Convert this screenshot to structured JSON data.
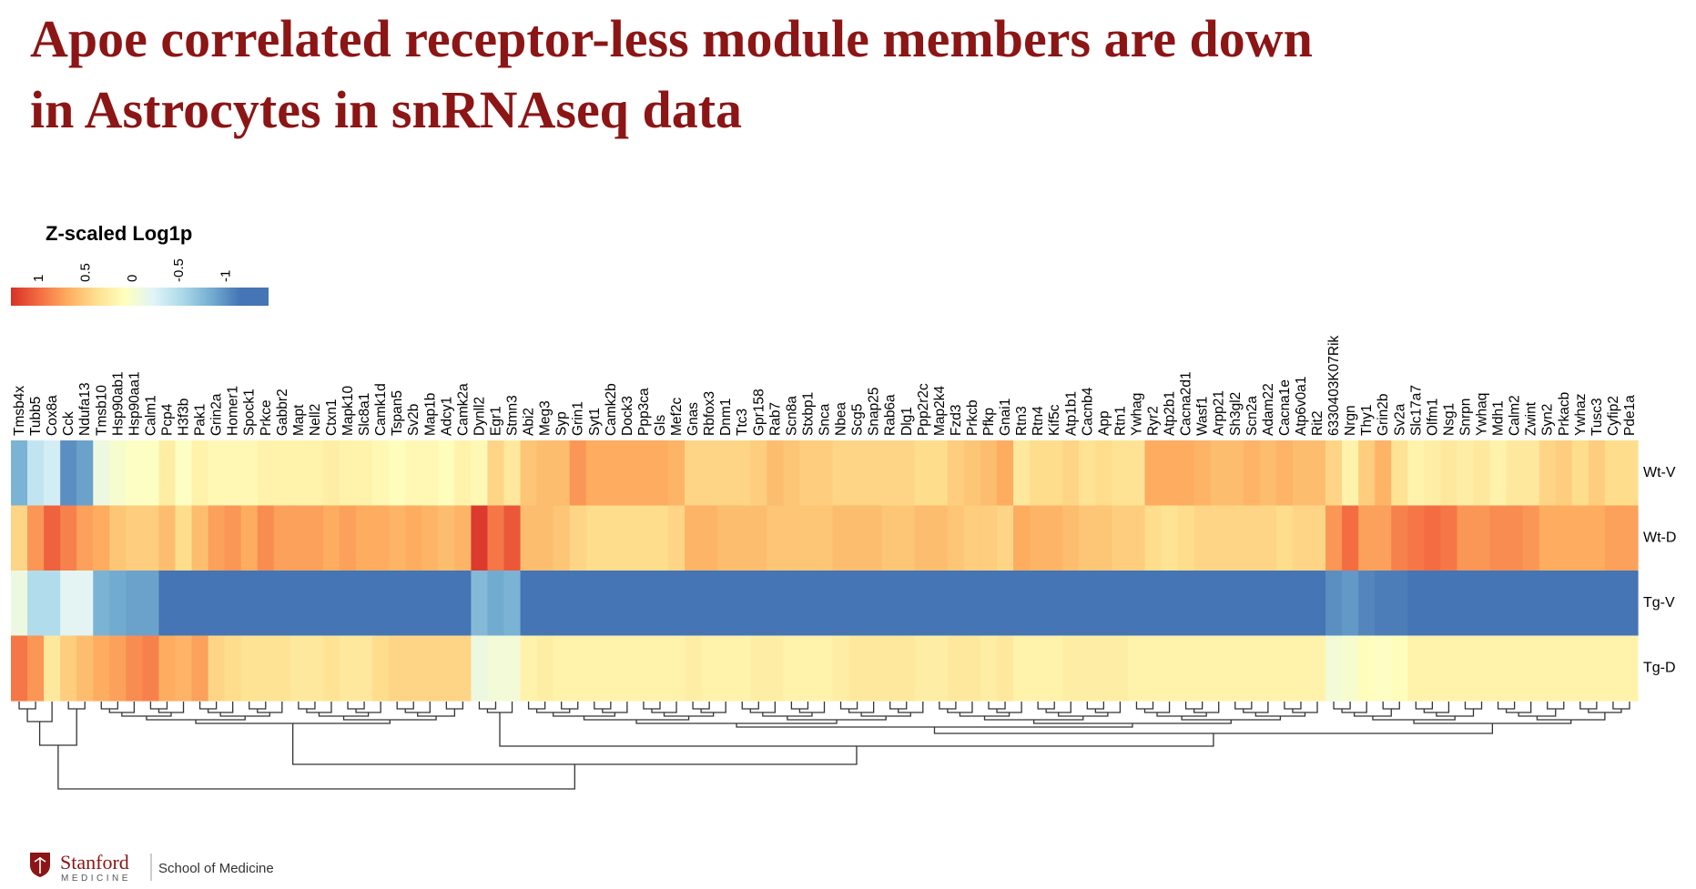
{
  "title_lines": [
    "Apoe correlated receptor-less module members are down",
    "in Astrocytes in snRNAseq data"
  ],
  "chart_data": {
    "type": "heatmap",
    "legend_title": "Z-scaled Log1p",
    "zlim": [
      1.3,
      -1.45
    ],
    "zticks": [
      1,
      0.5,
      0,
      -0.5,
      -1
    ],
    "colors": [
      "#d73027",
      "#f46d43",
      "#fdae61",
      "#fee090",
      "#ffffbf",
      "#e0f3f8",
      "#abd9e9",
      "#74add1",
      "#4575b4",
      "#4575b4"
    ],
    "rows": [
      "Wt-V",
      "Wt-D",
      "Tg-V",
      "Tg-D"
    ],
    "columns": [
      "Tmsb4x",
      "Tubb5",
      "Cox8a",
      "Cck",
      "Ndufa13",
      "Tmsb10",
      "Hsp90ab1",
      "Hsp90aa1",
      "Calm1",
      "Pcp4",
      "H3f3b",
      "Pak1",
      "Grin2a",
      "Homer1",
      "Spock1",
      "Prkce",
      "Gabbr2",
      "Mapt",
      "Nell2",
      "Ctxn1",
      "Mapk10",
      "Slc8a1",
      "Camk1d",
      "Tspan5",
      "Sv2b",
      "Map1b",
      "Adcy1",
      "Camk2a",
      "Dynll2",
      "Egr1",
      "Stmn3",
      "Abi2",
      "Meg3",
      "Syp",
      "Grin1",
      "Syt1",
      "Camk2b",
      "Dock3",
      "Ppp3ca",
      "Gls",
      "Mef2c",
      "Gnas",
      "Rbfox3",
      "Dnm1",
      "Ttc3",
      "Gpr158",
      "Rab7",
      "Scn8a",
      "Stxbp1",
      "Snca",
      "Nbea",
      "Scg5",
      "Snap25",
      "Rab6a",
      "Dlg1",
      "Ppp2r2c",
      "Map2k4",
      "Fzd3",
      "Prkcb",
      "Pfkp",
      "Gnai1",
      "Rtn3",
      "Rtn4",
      "Kif5c",
      "Atp1b1",
      "Cacnb4",
      "App",
      "Rtn1",
      "Ywhag",
      "Ryr2",
      "Atp2b1",
      "Cacna2d1",
      "Wasf1",
      "Arpp21",
      "Sh3gl2",
      "Scn2a",
      "Adam22",
      "Cacna1e",
      "Atp6v0a1",
      "Rit2",
      "6330403K07Rik",
      "Nrgn",
      "Thy1",
      "Grin2b",
      "Sv2a",
      "Slc17a7",
      "Olfm1",
      "Nsg1",
      "Snrpn",
      "Ywhaq",
      "Mdh1",
      "Calm2",
      "Zwint",
      "Syn2",
      "Prkacb",
      "Ywhaz",
      "Tusc3",
      "Cyfip2",
      "Pde1a"
    ],
    "values": [
      [
        -0.8,
        -0.4,
        -0.3,
        -1.0,
        -0.9,
        -0.1,
        0.0,
        0.05,
        0.05,
        0.25,
        0.05,
        0.2,
        0.15,
        0.15,
        0.15,
        0.2,
        0.2,
        0.2,
        0.2,
        0.25,
        0.2,
        0.2,
        0.15,
        0.1,
        0.15,
        0.15,
        0.1,
        0.2,
        0.15,
        0.45,
        0.3,
        0.55,
        0.6,
        0.6,
        0.8,
        0.7,
        0.7,
        0.7,
        0.7,
        0.7,
        0.65,
        0.45,
        0.45,
        0.45,
        0.45,
        0.5,
        0.6,
        0.55,
        0.5,
        0.5,
        0.45,
        0.45,
        0.45,
        0.45,
        0.45,
        0.4,
        0.4,
        0.5,
        0.55,
        0.6,
        0.7,
        0.3,
        0.4,
        0.4,
        0.45,
        0.35,
        0.4,
        0.35,
        0.35,
        0.7,
        0.7,
        0.7,
        0.65,
        0.6,
        0.6,
        0.65,
        0.6,
        0.65,
        0.6,
        0.6,
        0.45,
        0.2,
        0.5,
        0.65,
        0.35,
        0.2,
        0.25,
        0.3,
        0.25,
        0.3,
        0.2,
        0.3,
        0.3,
        0.45,
        0.5,
        0.4,
        0.5,
        0.4,
        0.4
      ],
      [
        0.45,
        0.8,
        1.05,
        0.9,
        0.75,
        0.7,
        0.55,
        0.5,
        0.5,
        0.6,
        0.4,
        0.6,
        0.75,
        0.8,
        0.7,
        0.85,
        0.75,
        0.75,
        0.75,
        0.7,
        0.75,
        0.7,
        0.7,
        0.65,
        0.7,
        0.65,
        0.6,
        0.65,
        1.25,
        0.95,
        1.1,
        0.6,
        0.6,
        0.55,
        0.45,
        0.4,
        0.4,
        0.4,
        0.4,
        0.4,
        0.45,
        0.65,
        0.65,
        0.6,
        0.6,
        0.6,
        0.55,
        0.55,
        0.55,
        0.55,
        0.6,
        0.6,
        0.6,
        0.55,
        0.55,
        0.6,
        0.6,
        0.55,
        0.5,
        0.5,
        0.45,
        0.7,
        0.65,
        0.65,
        0.6,
        0.55,
        0.55,
        0.5,
        0.5,
        0.4,
        0.35,
        0.4,
        0.45,
        0.45,
        0.45,
        0.45,
        0.45,
        0.4,
        0.45,
        0.45,
        0.8,
        1.0,
        0.75,
        0.75,
        0.9,
        0.95,
        1.0,
        0.95,
        0.8,
        0.8,
        0.85,
        0.85,
        0.8,
        0.7,
        0.7,
        0.7,
        0.7,
        0.75,
        0.75
      ],
      [
        -0.1,
        -0.5,
        -0.5,
        -0.2,
        -0.2,
        -0.8,
        -0.85,
        -0.9,
        -0.9,
        -1.25,
        -1.25,
        -1.25,
        -1.25,
        -1.25,
        -1.25,
        -1.25,
        -1.25,
        -1.25,
        -1.25,
        -1.25,
        -1.25,
        -1.25,
        -1.25,
        -1.25,
        -1.25,
        -1.25,
        -1.25,
        -1.25,
        -0.75,
        -0.85,
        -0.8,
        -1.25,
        -1.25,
        -1.25,
        -1.25,
        -1.25,
        -1.25,
        -1.25,
        -1.25,
        -1.25,
        -1.25,
        -1.25,
        -1.25,
        -1.25,
        -1.25,
        -1.25,
        -1.25,
        -1.25,
        -1.25,
        -1.25,
        -1.25,
        -1.25,
        -1.25,
        -1.25,
        -1.25,
        -1.25,
        -1.25,
        -1.25,
        -1.25,
        -1.25,
        -1.25,
        -1.25,
        -1.25,
        -1.25,
        -1.25,
        -1.25,
        -1.25,
        -1.25,
        -1.25,
        -1.25,
        -1.25,
        -1.25,
        -1.25,
        -1.25,
        -1.25,
        -1.25,
        -1.25,
        -1.25,
        -1.25,
        -1.25,
        -1.0,
        -0.95,
        -1.05,
        -1.1,
        -1.1,
        -1.2,
        -1.2,
        -1.2,
        -1.2,
        -1.2,
        -1.2,
        -1.2,
        -1.2,
        -1.2,
        -1.2,
        -1.2,
        -1.2,
        -1.2,
        -1.2
      ],
      [
        0.95,
        0.8,
        0.3,
        0.5,
        0.6,
        0.7,
        0.75,
        0.85,
        0.9,
        0.7,
        0.65,
        0.75,
        0.45,
        0.4,
        0.35,
        0.35,
        0.35,
        0.3,
        0.3,
        0.35,
        0.3,
        0.3,
        0.4,
        0.45,
        0.45,
        0.45,
        0.45,
        0.45,
        -0.1,
        -0.05,
        -0.05,
        0.2,
        0.25,
        0.2,
        0.2,
        0.2,
        0.2,
        0.2,
        0.2,
        0.2,
        0.2,
        0.25,
        0.2,
        0.2,
        0.2,
        0.25,
        0.25,
        0.2,
        0.2,
        0.2,
        0.25,
        0.3,
        0.3,
        0.3,
        0.3,
        0.25,
        0.25,
        0.3,
        0.3,
        0.25,
        0.3,
        0.2,
        0.2,
        0.2,
        0.25,
        0.25,
        0.25,
        0.25,
        0.2,
        0.2,
        0.2,
        0.2,
        0.2,
        0.2,
        0.2,
        0.2,
        0.2,
        0.2,
        0.2,
        0.2,
        -0.05,
        0.0,
        0.1,
        0.05,
        0.1,
        0.2,
        0.2,
        0.2,
        0.2,
        0.2,
        0.2,
        0.2,
        0.2,
        0.2,
        0.2,
        0.2,
        0.2,
        0.2,
        0.2
      ]
    ]
  },
  "footer": {
    "logo": "Stanford",
    "logo_sub": "MEDICINE",
    "school": "School of Medicine"
  }
}
